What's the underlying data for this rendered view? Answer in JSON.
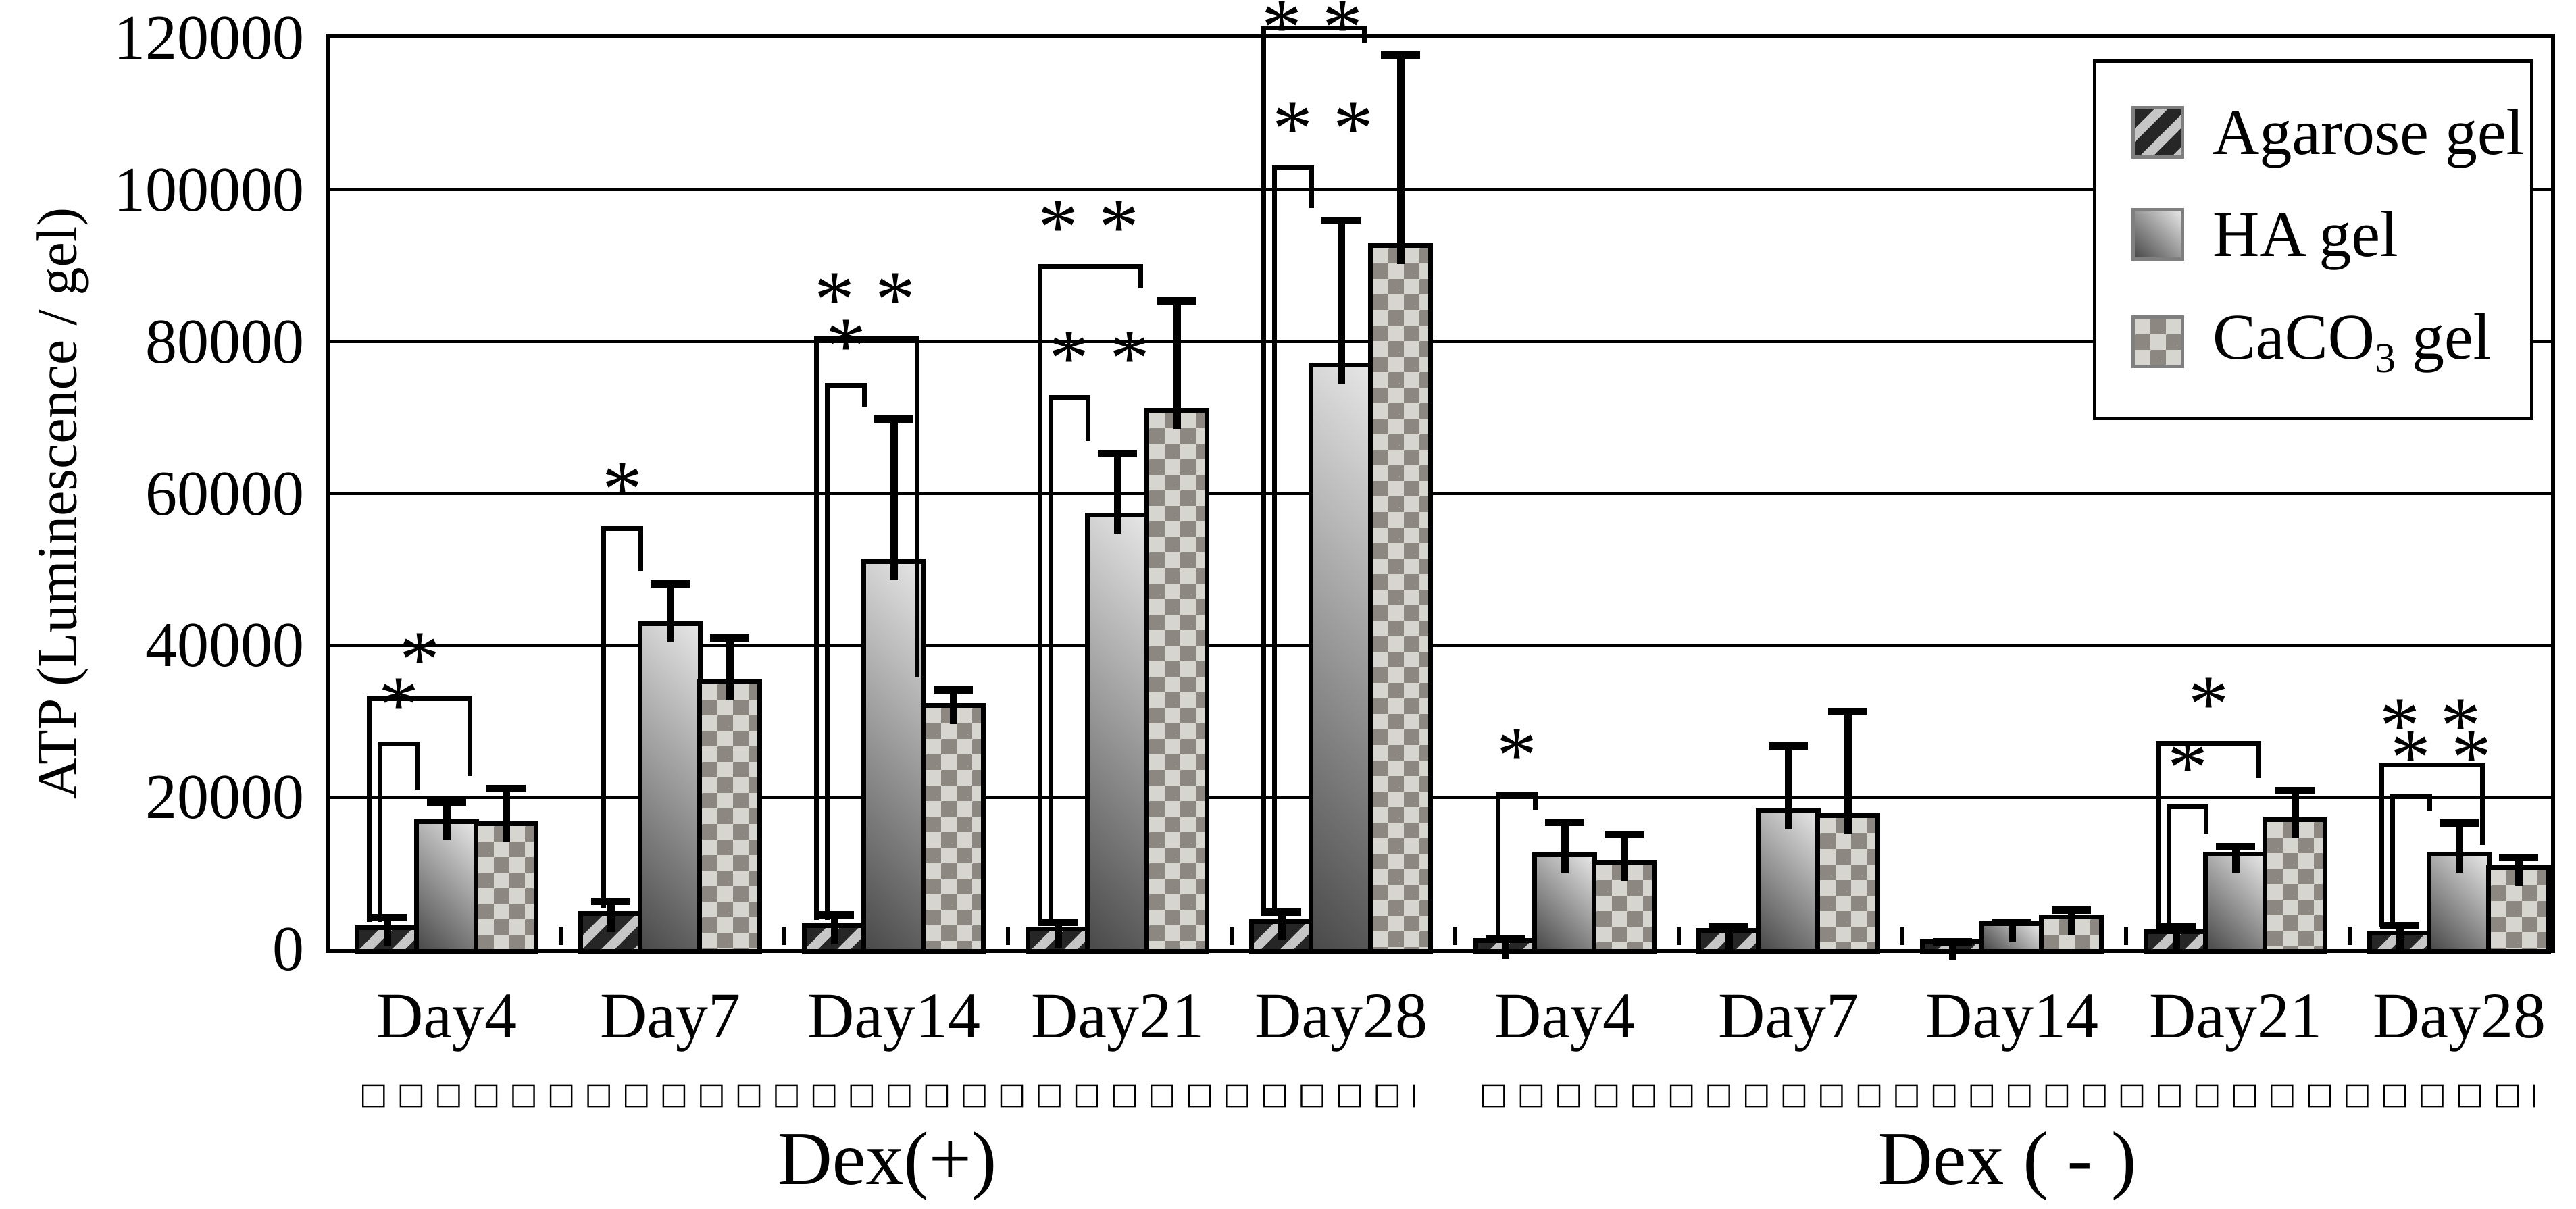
{
  "y_axis": {
    "title": "ATP (Luminescence / gel)",
    "ticks": [
      "0",
      "20000",
      "40000",
      "60000",
      "80000",
      "100000",
      "120000"
    ]
  },
  "x_axis": {
    "condition_labels": [
      "Dex(+)",
      "Dex ( - )"
    ],
    "separator_glyph": "□"
  },
  "legend": {
    "items": [
      {
        "label": "Agarose gel",
        "pattern": "diagonal-stripes"
      },
      {
        "label": "HA gel",
        "pattern": "gradient"
      },
      {
        "label": "CaCO3 gel",
        "pre": "CaCO",
        "sub": "3",
        "post": " gel",
        "pattern": "checker"
      }
    ]
  },
  "chart_data": {
    "type": "bar",
    "title": "",
    "xlabel": "",
    "ylabel": "ATP (Luminescence / gel)",
    "ylim": [
      0,
      120000
    ],
    "yticks": [
      0,
      20000,
      40000,
      60000,
      80000,
      100000,
      120000
    ],
    "grid": true,
    "legend_position": "top-right",
    "series_keys": [
      "agarose",
      "ha",
      "caco3"
    ],
    "series_names": [
      "Agarose gel",
      "HA gel",
      "CaCO3 gel"
    ],
    "conditions": [
      {
        "label": "Dex(+)",
        "days": [
          "Day4",
          "Day7",
          "Day14",
          "Day21",
          "Day28"
        ]
      },
      {
        "label": "Dex ( - )",
        "days": [
          "Day4",
          "Day7",
          "Day14",
          "Day21",
          "Day28"
        ]
      }
    ],
    "groups": [
      {
        "day": "Day4",
        "condition": "Dex(+)",
        "values": {
          "agarose": 2500,
          "ha": 16500,
          "caco3": 16200
        },
        "errors": {
          "agarose": 1700,
          "ha": 2900,
          "caco3": 5000
        },
        "brackets": [
          {
            "from": "agarose",
            "to": "ha",
            "stars": "*",
            "level": 27000
          },
          {
            "from": "agarose",
            "to": "caco3",
            "stars": "*",
            "level": 33000
          }
        ]
      },
      {
        "day": "Day7",
        "condition": "Dex(+)",
        "values": {
          "agarose": 4400,
          "ha": 42500,
          "caco3": 34900
        },
        "errors": {
          "agarose": 1900,
          "ha": 5600,
          "caco3": 6100
        },
        "brackets": [
          {
            "from": "agarose",
            "to": "ha",
            "stars": "*",
            "level": 55400
          }
        ]
      },
      {
        "day": "Day14",
        "condition": "Dex(+)",
        "values": {
          "agarose": 2800,
          "ha": 50700,
          "caco3": 31800
        },
        "errors": {
          "agarose": 1700,
          "ha": 19100,
          "caco3": 2400
        },
        "brackets": [
          {
            "from": "agarose",
            "to": "ha",
            "stars": "*",
            "level": 74300
          },
          {
            "from": "agarose",
            "to": "caco3",
            "stars": "**",
            "level": 80400
          }
        ]
      },
      {
        "day": "Day21",
        "condition": "Dex(+)",
        "values": {
          "agarose": 2300,
          "ha": 56800,
          "caco3": 70600
        },
        "errors": {
          "agarose": 1300,
          "ha": 8500,
          "caco3": 14800
        },
        "brackets": [
          {
            "from": "agarose",
            "to": "ha",
            "stars": "**",
            "level": 72700
          },
          {
            "from": "agarose",
            "to": "caco3",
            "stars": "**",
            "level": 89900
          }
        ]
      },
      {
        "day": "Day28",
        "condition": "Dex(+)",
        "values": {
          "agarose": 3300,
          "ha": 76600,
          "caco3": 92300
        },
        "errors": {
          "agarose": 1600,
          "ha": 19400,
          "caco3": 25500
        },
        "brackets": [
          {
            "from": "agarose",
            "to": "ha",
            "stars": "**",
            "level": 102900
          },
          {
            "from": "agarose",
            "to": "caco3",
            "stars": "**",
            "level": 121300
          }
        ]
      },
      {
        "day": "Day4",
        "condition": "Dex ( - )",
        "values": {
          "agarose": 800,
          "ha": 12100,
          "caco3": 11100
        },
        "errors": {
          "agarose": 600,
          "ha": 4600,
          "caco3": 4000
        },
        "brackets": [
          {
            "from": "agarose",
            "to": "ha",
            "stars": "*",
            "level": 20400
          }
        ]
      },
      {
        "day": "Day7",
        "condition": "Dex ( - )",
        "values": {
          "agarose": 2100,
          "ha": 17900,
          "caco3": 17300
        },
        "errors": {
          "agarose": 900,
          "ha": 8900,
          "caco3": 14000
        },
        "brackets": []
      },
      {
        "day": "Day14",
        "condition": "Dex ( - )",
        "values": {
          "agarose": 700,
          "ha": 3000,
          "caco3": 3900
        },
        "errors": {
          "agarose": 300,
          "ha": 600,
          "caco3": 1300
        },
        "brackets": []
      },
      {
        "day": "Day21",
        "condition": "Dex ( - )",
        "values": {
          "agarose": 2000,
          "ha": 12200,
          "caco3": 16700
        },
        "errors": {
          "agarose": 1000,
          "ha": 1300,
          "caco3": 4200
        },
        "brackets": [
          {
            "from": "agarose",
            "to": "ha",
            "stars": "*",
            "level": 18800
          },
          {
            "from": "agarose",
            "to": "caco3",
            "stars": "*",
            "level": 27100
          }
        ]
      },
      {
        "day": "Day28",
        "condition": "Dex ( - )",
        "values": {
          "agarose": 1800,
          "ha": 12200,
          "caco3": 10400
        },
        "errors": {
          "agarose": 1300,
          "ha": 4400,
          "caco3": 1700
        },
        "brackets": [
          {
            "from": "agarose",
            "to": "ha",
            "stars": "**",
            "level": 20100
          },
          {
            "from": "agarose",
            "to": "caco3",
            "stars": "**",
            "level": 24300
          }
        ]
      }
    ]
  }
}
